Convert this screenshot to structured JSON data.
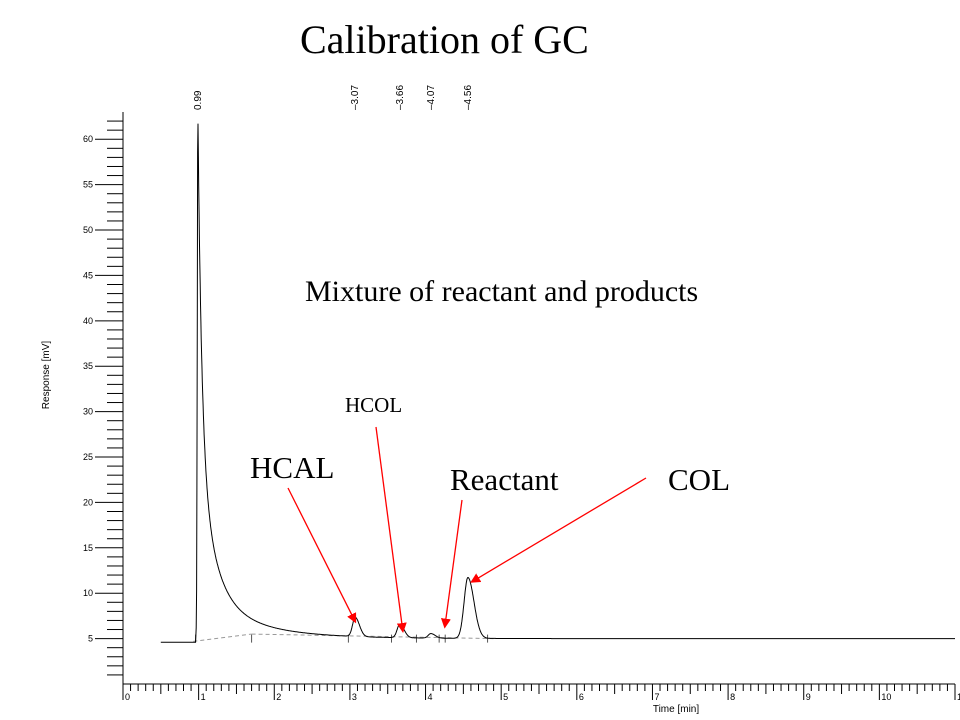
{
  "chart_data": {
    "type": "line",
    "title": "Calibration of GC",
    "subtitle": "Mixture of reactant and products",
    "xlabel": "Time [min]",
    "ylabel": "Response [mV]",
    "xlim": [
      0,
      11
    ],
    "ylim": [
      0,
      63
    ],
    "xticks": [
      "0",
      "1",
      "2",
      "3",
      "4",
      "5",
      "6",
      "7",
      "8",
      "9",
      "10",
      "11"
    ],
    "yticks": [
      "5",
      "10",
      "15",
      "20",
      "25",
      "30",
      "35",
      "40",
      "45",
      "50",
      "55",
      "60"
    ],
    "baseline": 5.0,
    "peaks": [
      {
        "time": 0.99,
        "label": "0.99",
        "height": 63.0
      },
      {
        "time": 3.07,
        "label": "3.07",
        "height": 7.1
      },
      {
        "time": 3.66,
        "label": "3.66",
        "height": 6.5
      },
      {
        "time": 4.07,
        "label": "4.07",
        "height": 5.5
      },
      {
        "time": 4.56,
        "label": "4.56",
        "height": 11.7
      }
    ],
    "annotations": [
      {
        "text": "HCAL",
        "peak_time": 3.07
      },
      {
        "text": "HCOL",
        "peak_time": 3.66
      },
      {
        "text": "Reactant",
        "peak_time": 4.07
      },
      {
        "text": "COL",
        "peak_time": 4.56
      }
    ],
    "grid": false,
    "colors": {
      "trace": "#000000",
      "arrow": "#ff0000",
      "baseline": "#999999"
    }
  }
}
